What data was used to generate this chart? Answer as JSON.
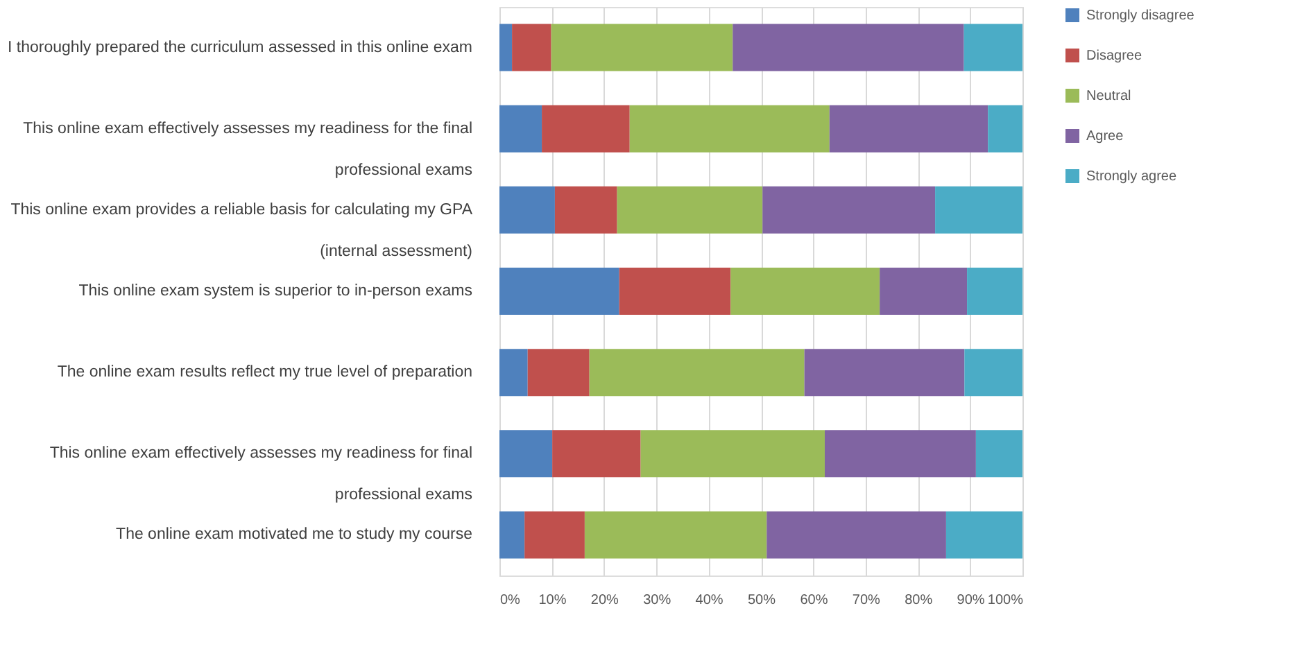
{
  "chart_data": {
    "type": "bar",
    "orientation": "horizontal",
    "stacked": true,
    "categories": [
      "I thoroughly prepared the curriculum assessed in this online exam",
      "This online exam effectively assesses my readiness for the final professional exams",
      "This online exam provides a reliable basis for calculating my GPA (internal assessment)",
      "This online exam system is superior to in-person exams",
      "The online exam results reflect my true level of preparation",
      "This online exam effectively assesses my readiness for final professional exams",
      "The online exam motivated me to study my course"
    ],
    "series": [
      {
        "name": "Strongly disagree",
        "color": "#4f81bd",
        "values": [
          2.4,
          8.1,
          10.6,
          22.9,
          5.4,
          10.1,
          4.8
        ]
      },
      {
        "name": "Disagree",
        "color": "#c0504d",
        "values": [
          7.5,
          16.8,
          11.9,
          21.3,
          11.8,
          16.9,
          11.5
        ]
      },
      {
        "name": "Neutral",
        "color": "#9bbb59",
        "values": [
          34.7,
          38.2,
          27.8,
          28.5,
          41.1,
          35.2,
          34.8
        ]
      },
      {
        "name": "Agree",
        "color": "#8064a2",
        "values": [
          44.2,
          30.3,
          33.0,
          16.7,
          30.6,
          28.9,
          34.3
        ]
      },
      {
        "name": "Strongly agree",
        "color": "#4bacc6",
        "values": [
          11.2,
          6.6,
          16.7,
          10.6,
          11.1,
          8.9,
          14.6
        ]
      }
    ],
    "xlim": [
      0,
      100
    ],
    "xticks": [
      {
        "value": 0,
        "label": "0%"
      },
      {
        "value": 10,
        "label": "10%"
      },
      {
        "value": 20,
        "label": "20%"
      },
      {
        "value": 30,
        "label": "30%"
      },
      {
        "value": 40,
        "label": "40%"
      },
      {
        "value": 50,
        "label": "50%"
      },
      {
        "value": 60,
        "label": "60%"
      },
      {
        "value": 70,
        "label": "70%"
      },
      {
        "value": 80,
        "label": "80%"
      },
      {
        "value": 90,
        "label": "90%"
      },
      {
        "value": 100,
        "label": "100%"
      }
    ],
    "grid": "x",
    "legend": "right"
  }
}
